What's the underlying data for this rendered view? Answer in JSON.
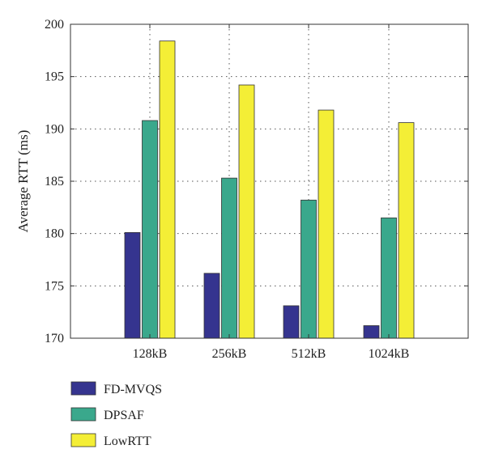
{
  "chart_data": {
    "type": "bar",
    "categories": [
      "128kB",
      "256kB",
      "512kB",
      "1024kB"
    ],
    "series": [
      {
        "name": "FD-MVQS",
        "color": "#35348f",
        "values": [
          180.1,
          176.2,
          173.1,
          171.2
        ]
      },
      {
        "name": "DPSAF",
        "color": "#3aa88c",
        "values": [
          190.8,
          185.3,
          183.2,
          181.5
        ]
      },
      {
        "name": "LowRTT",
        "color": "#f4ee36",
        "values": [
          198.4,
          194.2,
          191.8,
          190.6
        ]
      }
    ],
    "ylabel": "Average RTT (ms)",
    "ylim": [
      170,
      200
    ],
    "yticks": [
      170,
      175,
      180,
      185,
      190,
      195,
      200
    ],
    "grid": true,
    "legend_placement": "bottom-left"
  }
}
